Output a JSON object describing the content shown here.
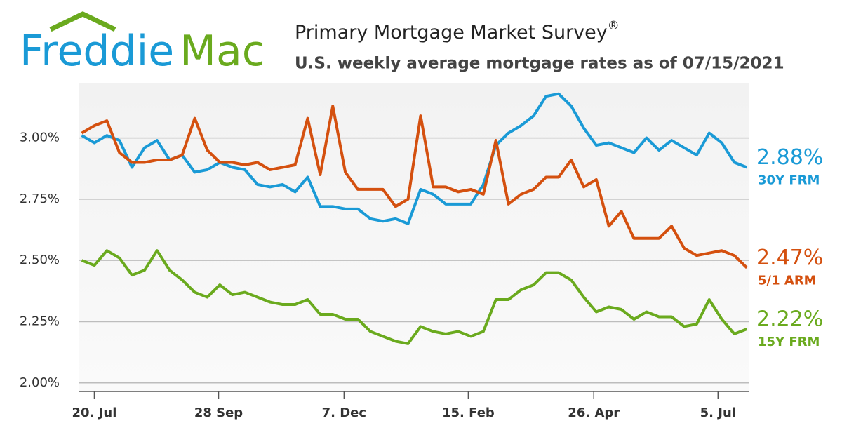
{
  "logo": {
    "first": "Freddie",
    "second": "Mac"
  },
  "chart_data": {
    "type": "line",
    "title": "Primary Mortgage Market Survey",
    "title_mark": "®",
    "subtitle": "U.S. weekly average mortgage rates as of 07/15/2021",
    "xlim": [
      -0.2,
      53.2
    ],
    "xticks": [
      {
        "value": 1.0,
        "label": "20. Jul"
      },
      {
        "value": 10.9,
        "label": "28 Sep"
      },
      {
        "value": 20.9,
        "label": "7. Dec"
      },
      {
        "value": 30.8,
        "label": "15. Feb"
      },
      {
        "value": 40.8,
        "label": "26. Apr"
      },
      {
        "value": 50.7,
        "label": "5. Jul"
      }
    ],
    "ylim": [
      1.965,
      3.225
    ],
    "yticks": [
      {
        "value": 2,
        "label": "2.00%"
      },
      {
        "value": 2.25,
        "label": "2.25%"
      },
      {
        "value": 2.5,
        "label": "2.50%"
      },
      {
        "value": 2.75,
        "label": "2.75%"
      },
      {
        "value": 3,
        "label": "3.00%"
      }
    ],
    "grid": true,
    "series": [
      {
        "name": "30Y FRM",
        "color": "#1a9ad6",
        "last_label": "2.88%",
        "values": [
          3.01,
          2.98,
          3.01,
          2.99,
          2.88,
          2.96,
          2.99,
          2.91,
          2.93,
          2.86,
          2.87,
          2.9,
          2.88,
          2.87,
          2.81,
          2.8,
          2.81,
          2.78,
          2.84,
          2.72,
          2.72,
          2.71,
          2.71,
          2.67,
          2.66,
          2.67,
          2.65,
          2.79,
          2.77,
          2.73,
          2.73,
          2.73,
          2.81,
          2.97,
          3.02,
          3.05,
          3.09,
          3.17,
          3.18,
          3.13,
          3.04,
          2.97,
          2.98,
          2.96,
          2.94,
          3.0,
          2.95,
          2.99,
          2.96,
          2.93,
          3.02,
          2.98,
          2.9,
          2.88
        ]
      },
      {
        "name": "5/1 ARM",
        "color": "#d4500f",
        "last_label": "2.47%",
        "values": [
          3.02,
          3.05,
          3.07,
          2.94,
          2.9,
          2.9,
          2.91,
          2.91,
          2.93,
          3.08,
          2.95,
          2.9,
          2.9,
          2.89,
          2.9,
          2.87,
          2.88,
          2.89,
          3.08,
          2.85,
          3.13,
          2.86,
          2.79,
          2.79,
          2.79,
          2.72,
          2.75,
          3.09,
          2.8,
          2.8,
          2.78,
          2.79,
          2.77,
          2.99,
          2.73,
          2.77,
          2.79,
          2.84,
          2.84,
          2.91,
          2.8,
          2.83,
          2.64,
          2.7,
          2.59,
          2.59,
          2.59,
          2.64,
          2.55,
          2.52,
          2.53,
          2.54,
          2.52,
          2.47
        ]
      },
      {
        "name": "15Y FRM",
        "color": "#6aaa1e",
        "last_label": "2.22%",
        "values": [
          2.5,
          2.48,
          2.54,
          2.51,
          2.44,
          2.46,
          2.54,
          2.46,
          2.42,
          2.37,
          2.35,
          2.4,
          2.36,
          2.37,
          2.35,
          2.33,
          2.32,
          2.32,
          2.34,
          2.28,
          2.28,
          2.26,
          2.26,
          2.21,
          2.19,
          2.17,
          2.16,
          2.23,
          2.21,
          2.2,
          2.21,
          2.19,
          2.21,
          2.34,
          2.34,
          2.38,
          2.4,
          2.45,
          2.45,
          2.42,
          2.35,
          2.29,
          2.31,
          2.3,
          2.26,
          2.29,
          2.27,
          2.27,
          2.23,
          2.24,
          2.34,
          2.26,
          2.2,
          2.22
        ]
      }
    ]
  }
}
